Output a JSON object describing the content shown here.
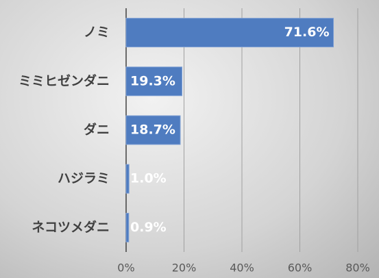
{
  "chart_data": {
    "type": "bar",
    "orientation": "horizontal",
    "categories": [
      "ノミ",
      "ミミヒゼンダニ",
      "ダニ",
      "ハジラミ",
      "ネコツメダニ"
    ],
    "values": [
      71.6,
      19.3,
      18.7,
      1.0,
      0.9
    ],
    "value_labels": [
      "71.6%",
      "19.3%",
      "18.7%",
      "1.0%",
      "0.9%"
    ],
    "color": "#4f7cc0",
    "xlim": [
      0,
      80
    ],
    "xticks": [
      {
        "value": 0,
        "label": "0%"
      },
      {
        "value": 20,
        "label": "20%"
      },
      {
        "value": 40,
        "label": "40%"
      },
      {
        "value": 60,
        "label": "60%"
      },
      {
        "value": 80,
        "label": "80%"
      }
    ],
    "grid": true
  }
}
